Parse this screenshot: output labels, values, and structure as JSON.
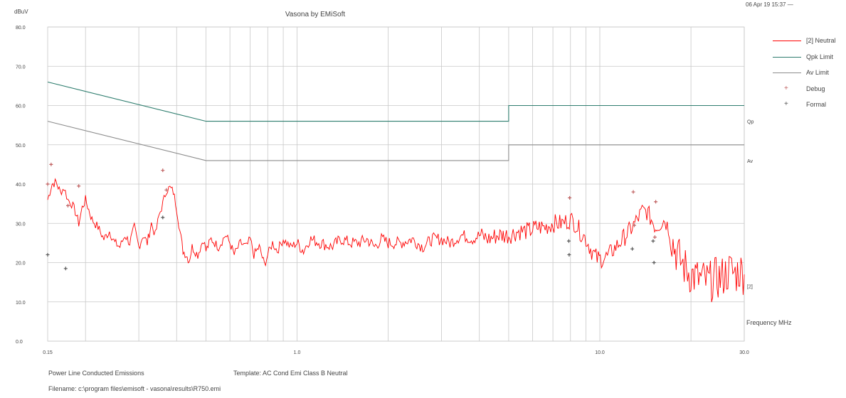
{
  "header": {
    "title": "Vasona by EMiSoft",
    "datetime": "06 Apr 19 15:37 —"
  },
  "footer": {
    "description": "Power Line Conducted Emissions",
    "template": "Template: AC Cond Emi Class B Neutral",
    "filename": "Filename: c:\\program files\\emisoft - vasona\\results\\R750.emi"
  },
  "colors": {
    "trace": "#ff0000",
    "qpk_limit": "#2e7d6e",
    "av_limit": "#8c8c8c",
    "grid": "#c8c8c8",
    "debug_marker": "#c06060",
    "formal_marker": "#555555"
  },
  "chart_data": {
    "type": "line",
    "title": "Vasona by EMiSoft",
    "ylabel": "dBuV",
    "xlabel": "Frequency MHz",
    "x_scale": "log",
    "xlim": [
      0.15,
      30.0
    ],
    "ylim": [
      0,
      80
    ],
    "grid": true,
    "y_ticks": [
      "0.0",
      "10.0",
      "20.0",
      "30.0",
      "40.0",
      "50.0",
      "60.0",
      "70.0",
      "80.0"
    ],
    "x_ticks": [
      {
        "value": 0.15,
        "label": "0.15"
      },
      {
        "value": 1.0,
        "label": "1.0"
      },
      {
        "value": 10.0,
        "label": "10.0"
      },
      {
        "value": 30.0,
        "label": "30.0"
      }
    ],
    "legend": {
      "position": "right",
      "entries": [
        {
          "label": "[2] Neutral",
          "kind": "line",
          "color": "#ff0000"
        },
        {
          "label": "Qpk Limit",
          "kind": "line",
          "color": "#2e7d6e"
        },
        {
          "label": "Av Limit",
          "kind": "line",
          "color": "#8c8c8c"
        },
        {
          "label": "Debug",
          "kind": "marker",
          "color": "#c06060",
          "symbol": "+"
        },
        {
          "label": "Formal",
          "kind": "marker",
          "color": "#555555",
          "symbol": "+"
        }
      ]
    },
    "right_labels": [
      {
        "text": "Qp",
        "y": 56
      },
      {
        "text": "Av",
        "y": 46
      },
      {
        "text": "[2]",
        "y": 14
      }
    ],
    "series": [
      {
        "name": "Qpk Limit",
        "color": "#2e7d6e",
        "points": [
          [
            0.15,
            66
          ],
          [
            0.5,
            56
          ],
          [
            5.0,
            56
          ],
          [
            5.0,
            60
          ],
          [
            30.0,
            60
          ]
        ]
      },
      {
        "name": "Av Limit",
        "color": "#8c8c8c",
        "points": [
          [
            0.15,
            56
          ],
          [
            0.5,
            46
          ],
          [
            5.0,
            46
          ],
          [
            5.0,
            50
          ],
          [
            30.0,
            50
          ]
        ]
      },
      {
        "name": "[2] Neutral",
        "color": "#ff0000",
        "points": [
          [
            0.15,
            36
          ],
          [
            0.155,
            40
          ],
          [
            0.16,
            40.5
          ],
          [
            0.165,
            38
          ],
          [
            0.17,
            39
          ],
          [
            0.175,
            36
          ],
          [
            0.18,
            35
          ],
          [
            0.185,
            33
          ],
          [
            0.19,
            30
          ],
          [
            0.195,
            34
          ],
          [
            0.2,
            36
          ],
          [
            0.21,
            31
          ],
          [
            0.22,
            29
          ],
          [
            0.23,
            26
          ],
          [
            0.24,
            28
          ],
          [
            0.25,
            25
          ],
          [
            0.26,
            24
          ],
          [
            0.27,
            27
          ],
          [
            0.28,
            25
          ],
          [
            0.29,
            29
          ],
          [
            0.3,
            24
          ],
          [
            0.31,
            27
          ],
          [
            0.32,
            25
          ],
          [
            0.33,
            30
          ],
          [
            0.34,
            27
          ],
          [
            0.35,
            32
          ],
          [
            0.36,
            35
          ],
          [
            0.37,
            38.5
          ],
          [
            0.38,
            39
          ],
          [
            0.39,
            38
          ],
          [
            0.4,
            34
          ],
          [
            0.41,
            28
          ],
          [
            0.42,
            23
          ],
          [
            0.43,
            22
          ],
          [
            0.44,
            20.5
          ],
          [
            0.45,
            24
          ],
          [
            0.47,
            22
          ],
          [
            0.49,
            26
          ],
          [
            0.5,
            23
          ],
          [
            0.52,
            26
          ],
          [
            0.55,
            24
          ],
          [
            0.58,
            27
          ],
          [
            0.6,
            25
          ],
          [
            0.62,
            22
          ],
          [
            0.65,
            25
          ],
          [
            0.68,
            24
          ],
          [
            0.7,
            26
          ],
          [
            0.72,
            22
          ],
          [
            0.75,
            24
          ],
          [
            0.78,
            19.5
          ],
          [
            0.8,
            22
          ],
          [
            0.83,
            25
          ],
          [
            0.86,
            23
          ],
          [
            0.9,
            26
          ],
          [
            0.95,
            24
          ],
          [
            1.0,
            25
          ],
          [
            1.05,
            23
          ],
          [
            1.1,
            26
          ],
          [
            1.2,
            25
          ],
          [
            1.3,
            24
          ],
          [
            1.4,
            26
          ],
          [
            1.5,
            25
          ],
          [
            1.6,
            25
          ],
          [
            1.7,
            26
          ],
          [
            1.8,
            24
          ],
          [
            1.9,
            26
          ],
          [
            2.0,
            25
          ],
          [
            2.2,
            25
          ],
          [
            2.4,
            26
          ],
          [
            2.6,
            24
          ],
          [
            2.8,
            26
          ],
          [
            3.0,
            26
          ],
          [
            3.2,
            25
          ],
          [
            3.5,
            27
          ],
          [
            3.8,
            26
          ],
          [
            4.0,
            27
          ],
          [
            4.3,
            26
          ],
          [
            4.6,
            27
          ],
          [
            5.0,
            27
          ],
          [
            5.4,
            28
          ],
          [
            5.8,
            28
          ],
          [
            6.2,
            29
          ],
          [
            6.6,
            29
          ],
          [
            7.0,
            30
          ],
          [
            7.5,
            30
          ],
          [
            8.0,
            31
          ],
          [
            8.3,
            30
          ],
          [
            8.6,
            28
          ],
          [
            9.0,
            26
          ],
          [
            9.4,
            23
          ],
          [
            9.8,
            21
          ],
          [
            10.2,
            21
          ],
          [
            10.6,
            21.5
          ],
          [
            11.0,
            23
          ],
          [
            11.6,
            25
          ],
          [
            12.2,
            27
          ],
          [
            12.8,
            29
          ],
          [
            13.3,
            31
          ],
          [
            13.8,
            33
          ],
          [
            14.3,
            33
          ],
          [
            14.8,
            31
          ],
          [
            15.3,
            29
          ],
          [
            15.8,
            30
          ],
          [
            16.4,
            31
          ],
          [
            17.0,
            28
          ],
          [
            17.6,
            24
          ],
          [
            18.3,
            21
          ],
          [
            19.0,
            19
          ],
          [
            20.0,
            17
          ],
          [
            21.0,
            16
          ],
          [
            22.0,
            15.5
          ],
          [
            23.0,
            15
          ],
          [
            24.0,
            16
          ],
          [
            25.0,
            16
          ],
          [
            26.0,
            17
          ],
          [
            27.0,
            18
          ],
          [
            28.0,
            17
          ],
          [
            29.0,
            18
          ],
          [
            30.0,
            17
          ]
        ]
      }
    ],
    "debug_markers": [
      [
        0.15,
        40
      ],
      [
        0.154,
        45
      ],
      [
        0.175,
        34.5
      ],
      [
        0.19,
        39.5
      ],
      [
        0.36,
        43.5
      ],
      [
        0.37,
        38.5
      ],
      [
        7.95,
        36.5
      ],
      [
        12.9,
        38
      ],
      [
        15.3,
        35.5
      ],
      [
        13.0,
        29.5
      ],
      [
        15.2,
        26.5
      ]
    ],
    "formal_markers": [
      [
        0.15,
        22
      ],
      [
        0.172,
        18.5
      ],
      [
        0.36,
        31.5
      ],
      [
        7.9,
        25.5
      ],
      [
        7.92,
        22
      ],
      [
        12.8,
        23.5
      ],
      [
        15.0,
        25.5
      ],
      [
        15.1,
        20
      ]
    ]
  }
}
